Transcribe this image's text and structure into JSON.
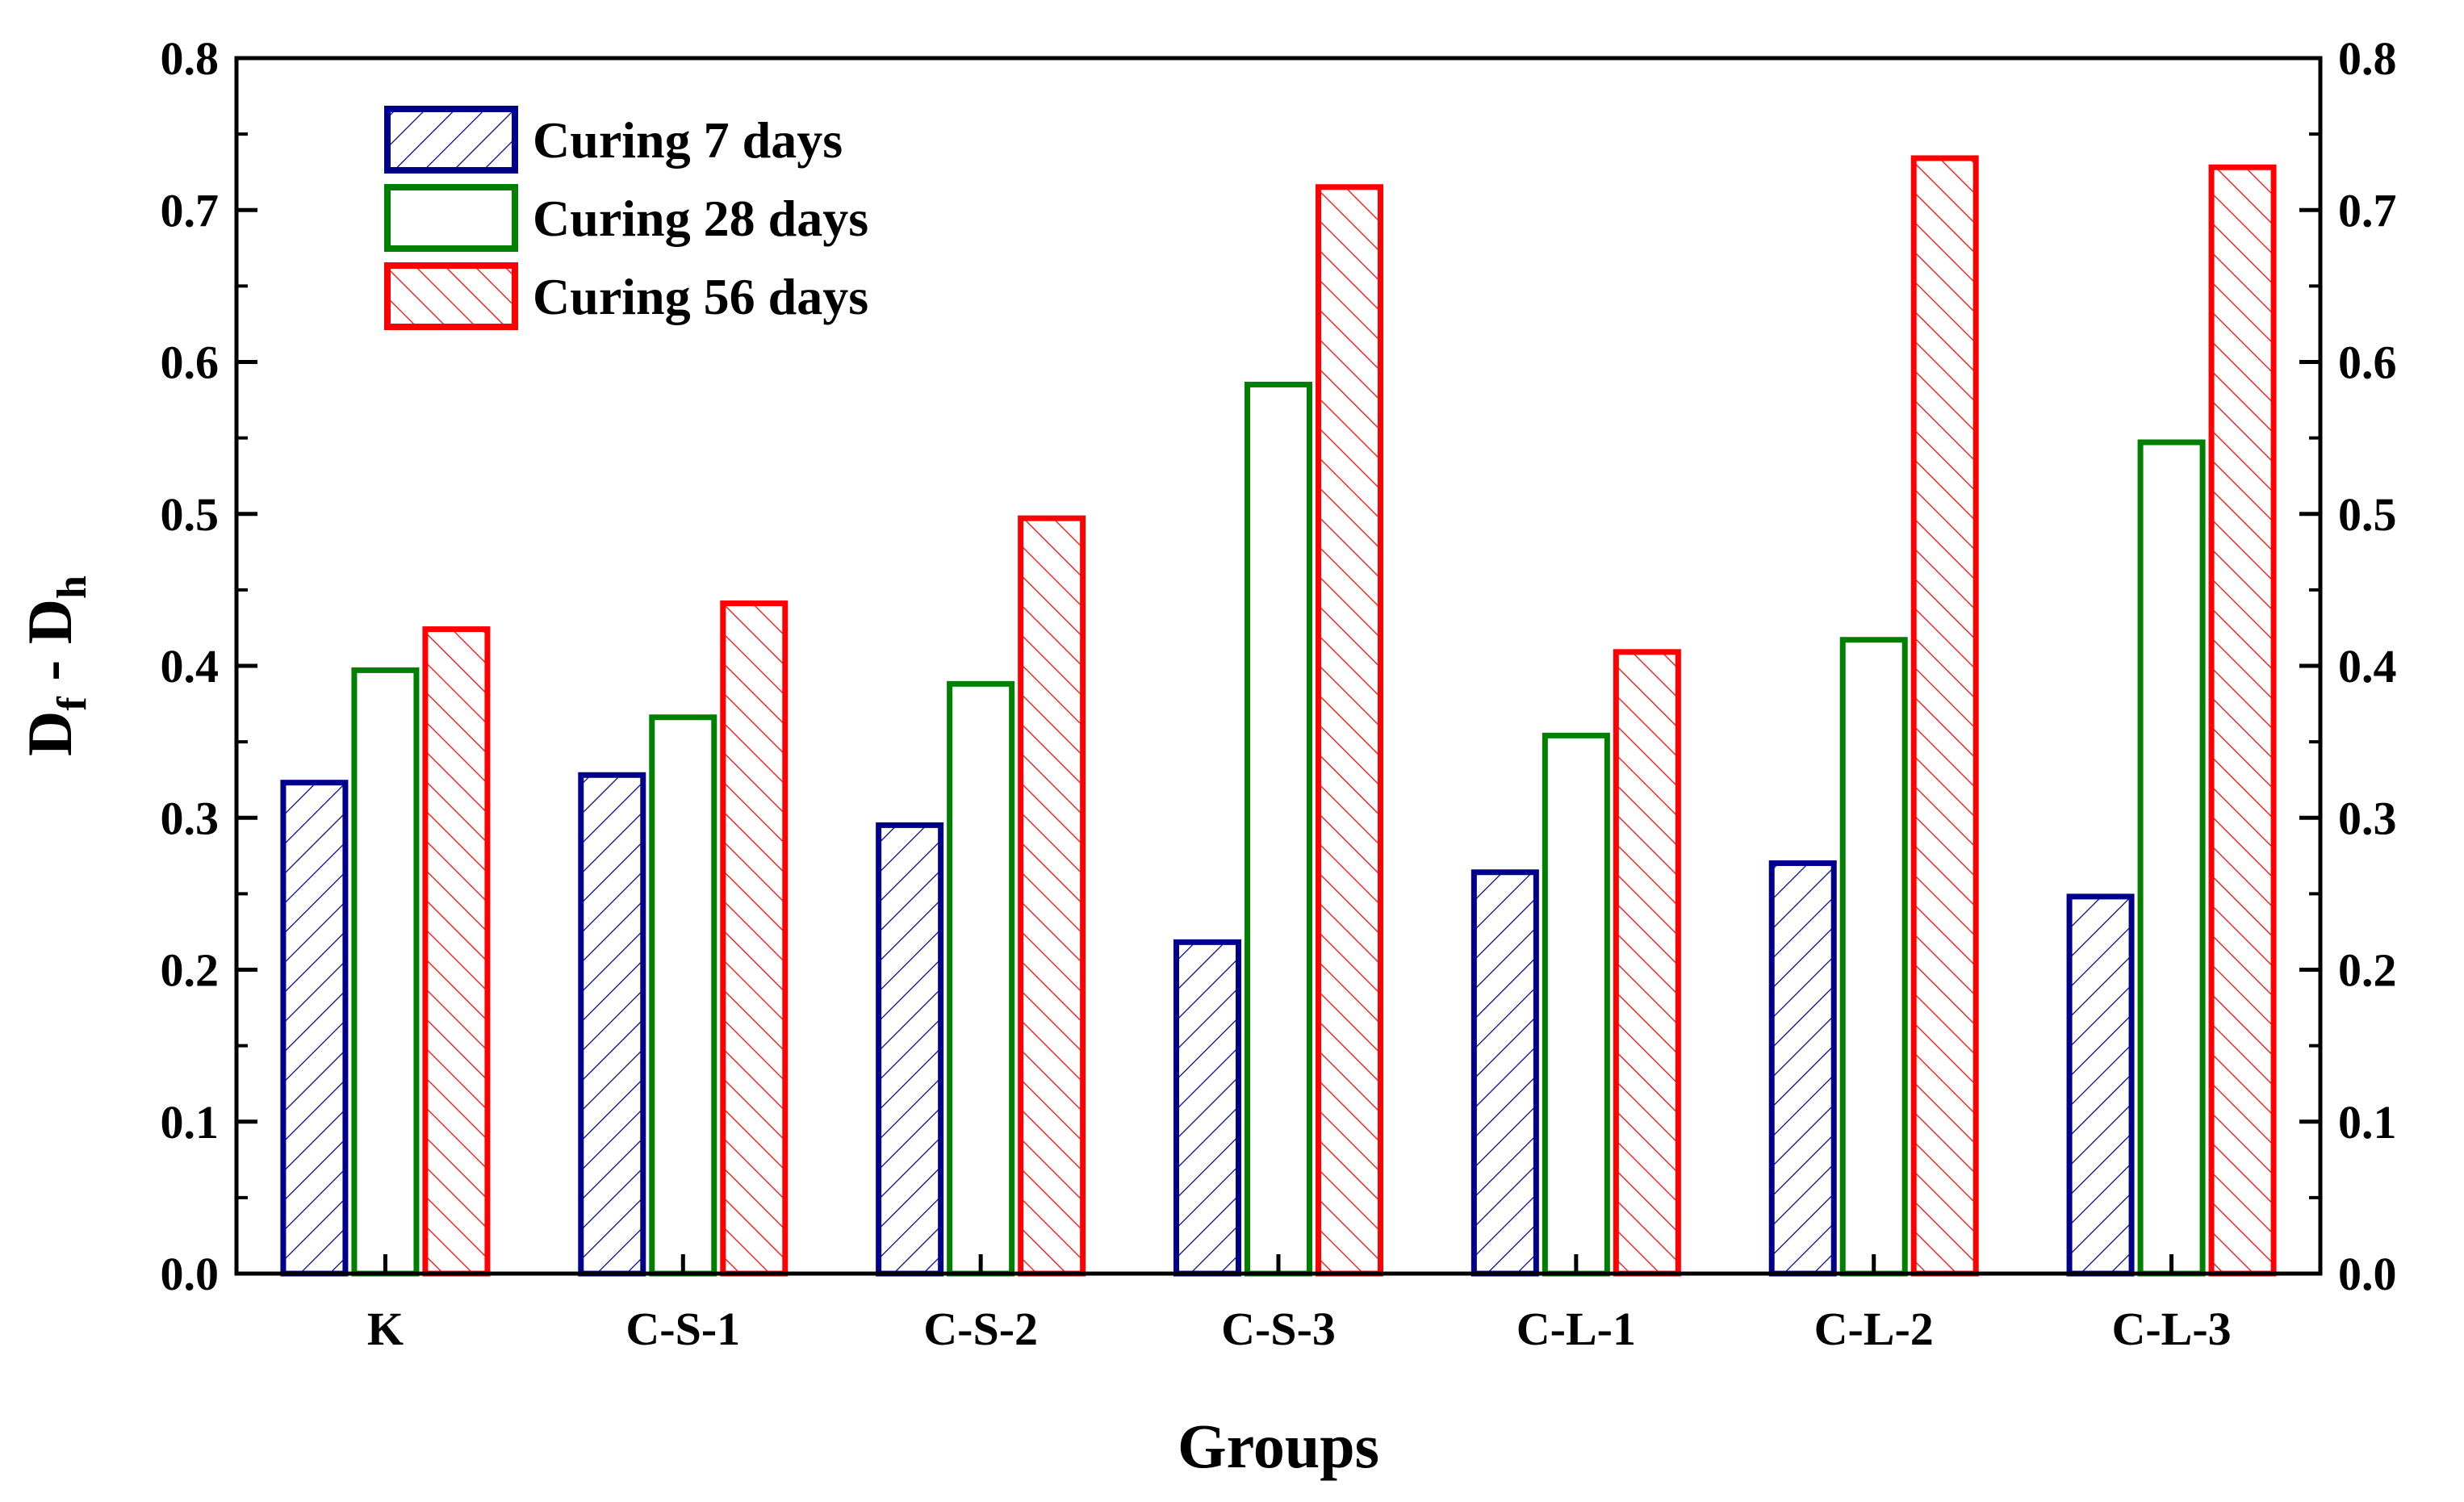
{
  "chart_data": {
    "type": "bar",
    "title": "",
    "xlabel": "Groups",
    "ylabel_main": "D",
    "ylabel_sub1": "f",
    "ylabel_mid": " - D",
    "ylabel_sub2": "h",
    "ylim": [
      0.0,
      0.8
    ],
    "yticks": [
      0.0,
      0.1,
      0.2,
      0.3,
      0.4,
      0.5,
      0.6,
      0.7,
      0.8
    ],
    "ytick_labels": [
      "0.0",
      "0.1",
      "0.2",
      "0.3",
      "0.4",
      "0.5",
      "0.6",
      "0.7",
      "0.8"
    ],
    "secondary_y_axis": true,
    "grid": false,
    "legend_position": "top-left",
    "categories": [
      "K",
      "C-S-1",
      "C-S-2",
      "C-S-3",
      "C-L-1",
      "C-L-2",
      "C-L-3"
    ],
    "series": [
      {
        "name": "Curing 7 days",
        "color": "#00008B",
        "pattern": "hatch-forward",
        "values": [
          0.325,
          0.33,
          0.297,
          0.22,
          0.266,
          0.272,
          0.25
        ]
      },
      {
        "name": "Curing 28 days",
        "color": "#008000",
        "pattern": "none",
        "values": [
          0.399,
          0.368,
          0.39,
          0.587,
          0.356,
          0.419,
          0.549
        ]
      },
      {
        "name": "Curing 56 days",
        "color": "#FF0000",
        "pattern": "hatch-backward",
        "values": [
          0.426,
          0.443,
          0.499,
          0.717,
          0.411,
          0.736,
          0.73
        ]
      }
    ]
  }
}
